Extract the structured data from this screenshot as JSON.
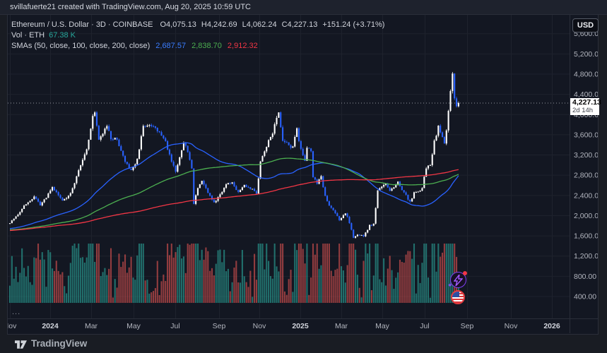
{
  "top_bar": {
    "attribution": "svillafuerte21 created with TradingView.com, Aug 20, 2025 10:59 UTC"
  },
  "legend": {
    "symbol_title": "Ethereum / U.S. Dollar · 3D · COINBASE",
    "ohlc": {
      "open": "O4,075.13",
      "high": "H4,242.69",
      "low": "L4,062.24",
      "close": "C4,227.13",
      "change": "+151.24 (+3.71%)"
    },
    "volume_row": {
      "label": "Vol · ETH",
      "value": "67.38 K"
    },
    "sma_row": {
      "label": "SMAs (50, close, 100, close, 200, close)",
      "sma50": "2,687.57",
      "sma100": "2,838.70",
      "sma200": "2,912.32"
    },
    "more_indicator": "..."
  },
  "price_axis": {
    "currency_button": "USD",
    "labels": [
      "5,600.00",
      "5,200.00",
      "4,800.00",
      "4,400.00",
      "4,000.00",
      "3,600.00",
      "3,200.00",
      "2,800.00",
      "2,400.00",
      "2,000.00",
      "1,600.00",
      "1,200.00",
      "800.00",
      "400.00"
    ],
    "current_price_label": "4,227.13",
    "countdown": "2d 14h"
  },
  "time_axis": {
    "labels": [
      "Nov",
      "2024",
      "Mar",
      "May",
      "Jul",
      "Sep",
      "Nov",
      "2025",
      "Mar",
      "May",
      "Jul",
      "Sep",
      "Nov",
      "2026"
    ]
  },
  "footer": {
    "brand": "TradingView"
  },
  "stickers": [
    {
      "name": "lightning-badge"
    },
    {
      "name": "us-flag-badge"
    }
  ],
  "colors": {
    "chart_bg": "#131722",
    "outer_bg": "#191c23",
    "topbar_bg": "#1e222d",
    "grid": "#1e222d",
    "border": "#2a2e39",
    "axis_text": "#b2b5be",
    "candle_up": "#ffffff",
    "candle_down": "#2962ff",
    "sma50": "#2962ff",
    "sma100": "#4caf50",
    "sma200": "#f23645",
    "vol_up": "rgba(42,166,154,0.62)",
    "vol_down": "rgba(224,84,80,0.62)",
    "price_line": "#9598a1",
    "price_label_bg": "#ffffff"
  },
  "chart_data": {
    "type": "candlestick_with_volume",
    "title": "Ethereum / U.S. Dollar",
    "interval": "3D",
    "exchange": "COINBASE",
    "ohlc_current": {
      "open": 4075.13,
      "high": 4242.69,
      "low": 4062.24,
      "close": 4227.13,
      "change": 151.24,
      "change_pct": 3.71
    },
    "volume_current_display": "67.38 K",
    "last_price": 4227.13,
    "sma_values": {
      "sma50": 2687.57,
      "sma100": 2838.7,
      "sma200": 2912.32,
      "periods_bars": [
        50,
        100,
        200
      ]
    },
    "y_axis": {
      "min": 400,
      "max": 5600,
      "tick_step": 400,
      "unit": "USD"
    },
    "x_axis_ticks": [
      "Nov",
      "2024",
      "Mar",
      "May",
      "Jul",
      "Sep",
      "Nov",
      "2025",
      "Mar",
      "May",
      "Jul",
      "Sep",
      "Nov",
      "2026"
    ],
    "bars_total": 223,
    "price_anchors_note": "approximate close path read from chart pixels: [bar index (3D bars from Nov 2023), price USD]",
    "price_anchors": [
      [
        0,
        1870
      ],
      [
        4,
        2030
      ],
      [
        8,
        2230
      ],
      [
        12,
        2370
      ],
      [
        15,
        2200
      ],
      [
        18,
        2360
      ],
      [
        21,
        2550
      ],
      [
        24,
        2400
      ],
      [
        26,
        2300
      ],
      [
        30,
        2430
      ],
      [
        34,
        2900
      ],
      [
        38,
        3300
      ],
      [
        41,
        3950
      ],
      [
        42,
        4060
      ],
      [
        44,
        3480
      ],
      [
        46,
        3650
      ],
      [
        48,
        3740
      ],
      [
        50,
        3540
      ],
      [
        53,
        3490
      ],
      [
        56,
        3160
      ],
      [
        60,
        2880
      ],
      [
        63,
        3120
      ],
      [
        66,
        3760
      ],
      [
        69,
        3800
      ],
      [
        73,
        3670
      ],
      [
        77,
        3470
      ],
      [
        80,
        3060
      ],
      [
        82,
        2890
      ],
      [
        86,
        3460
      ],
      [
        88,
        3240
      ],
      [
        90,
        2960
      ],
      [
        91,
        2240
      ],
      [
        93,
        2560
      ],
      [
        95,
        2700
      ],
      [
        98,
        2440
      ],
      [
        101,
        2260
      ],
      [
        104,
        2400
      ],
      [
        107,
        2610
      ],
      [
        110,
        2650
      ],
      [
        113,
        2460
      ],
      [
        116,
        2600
      ],
      [
        120,
        2510
      ],
      [
        122,
        2440
      ],
      [
        124,
        3060
      ],
      [
        127,
        3390
      ],
      [
        130,
        3640
      ],
      [
        133,
        4050
      ],
      [
        135,
        3490
      ],
      [
        137,
        3420
      ],
      [
        140,
        3340
      ],
      [
        142,
        3710
      ],
      [
        144,
        3290
      ],
      [
        146,
        3110
      ],
      [
        147,
        3360
      ],
      [
        149,
        3290
      ],
      [
        150,
        2760
      ],
      [
        152,
        2640
      ],
      [
        154,
        2760
      ],
      [
        156,
        2390
      ],
      [
        158,
        2210
      ],
      [
        161,
        2060
      ],
      [
        163,
        1900
      ],
      [
        166,
        2060
      ],
      [
        168,
        1860
      ],
      [
        170,
        1550
      ],
      [
        172,
        1630
      ],
      [
        175,
        1590
      ],
      [
        178,
        1800
      ],
      [
        180,
        1840
      ],
      [
        182,
        2490
      ],
      [
        184,
        2560
      ],
      [
        186,
        2650
      ],
      [
        188,
        2510
      ],
      [
        190,
        2540
      ],
      [
        192,
        2660
      ],
      [
        194,
        2490
      ],
      [
        196,
        2410
      ],
      [
        198,
        2260
      ],
      [
        200,
        2460
      ],
      [
        202,
        2450
      ],
      [
        204,
        2560
      ],
      [
        206,
        2960
      ],
      [
        208,
        3010
      ],
      [
        210,
        3460
      ],
      [
        212,
        3760
      ],
      [
        214,
        3560
      ],
      [
        215,
        3410
      ],
      [
        216,
        3700
      ],
      [
        217,
        4100
      ],
      [
        218,
        4460
      ],
      [
        219,
        4780
      ],
      [
        220,
        4310
      ],
      [
        221,
        4140
      ],
      [
        222,
        4227.13
      ]
    ],
    "pre_anchors": [
      [
        -200,
        1300
      ],
      [
        -150,
        1850
      ],
      [
        -100,
        1750
      ],
      [
        -50,
        1650
      ],
      [
        -1,
        1830
      ]
    ]
  }
}
